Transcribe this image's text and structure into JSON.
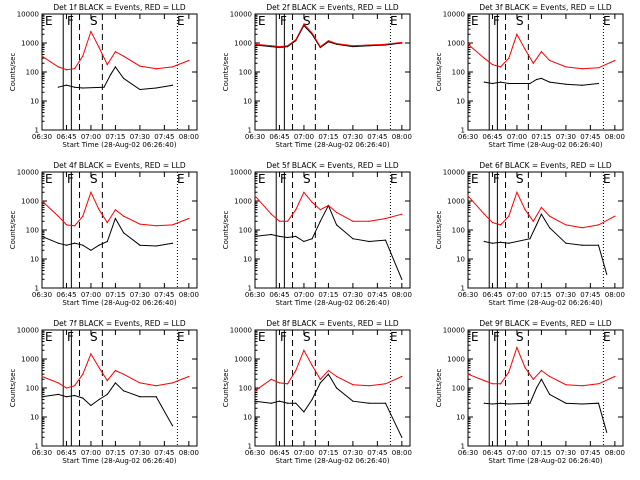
{
  "figure": {
    "xlabel": "Start Time (28-Aug-02 06:26:40)",
    "ylabel": "Counts/sec",
    "xticks": [
      "06:30",
      "06:45",
      "07:00",
      "07:15",
      "07:30",
      "07:45",
      "08:00"
    ],
    "yticks": [
      "1",
      "10",
      "100",
      "1000",
      "10000"
    ],
    "markers": [
      "E",
      "F",
      "S",
      "E"
    ],
    "colors": {
      "events": "#000000",
      "lld": "#ff0000",
      "axes": "#000000"
    }
  },
  "chart_data": [
    {
      "type": "line",
      "title": "Det 1f BLACK = Events, RED = LLD",
      "yscale": "log",
      "xlim": [
        "06:30",
        "08:05"
      ],
      "ylim": [
        1,
        10000
      ],
      "series": [
        {
          "name": "Events",
          "color": "#000000",
          "x": [
            "06:40",
            "06:45",
            "06:50",
            "06:55",
            "07:08",
            "07:12",
            "07:15",
            "07:20",
            "07:30",
            "07:40",
            "07:50"
          ],
          "y": [
            30,
            35,
            30,
            28,
            30,
            80,
            150,
            60,
            25,
            28,
            35
          ]
        },
        {
          "name": "LLD",
          "color": "#ff0000",
          "x": [
            "06:30",
            "06:40",
            "06:45",
            "06:50",
            "06:55",
            "07:00",
            "07:05",
            "07:10",
            "07:15",
            "07:20",
            "07:30",
            "07:40",
            "07:50",
            "08:00"
          ],
          "y": [
            350,
            150,
            120,
            130,
            350,
            2500,
            700,
            180,
            500,
            350,
            160,
            130,
            150,
            250
          ]
        }
      ]
    },
    {
      "type": "line",
      "title": "Det 2f BLACK = Events, RED = LLD",
      "yscale": "log",
      "xlim": [
        "06:30",
        "08:05"
      ],
      "ylim": [
        1,
        10000
      ],
      "series": [
        {
          "name": "Events",
          "color": "#000000",
          "x": [
            "06:30",
            "06:40",
            "06:45",
            "06:50",
            "06:55",
            "07:00",
            "07:05",
            "07:10",
            "07:15",
            "07:20",
            "07:30",
            "07:40",
            "07:50",
            "08:00"
          ],
          "y": [
            850,
            750,
            700,
            750,
            1200,
            4000,
            2000,
            700,
            1100,
            900,
            750,
            800,
            850,
            1000
          ]
        },
        {
          "name": "LLD",
          "color": "#ff0000",
          "x": [
            "06:30",
            "06:40",
            "06:45",
            "06:50",
            "06:55",
            "07:00",
            "07:05",
            "07:10",
            "07:15",
            "07:20",
            "07:30",
            "07:40",
            "07:50",
            "08:00"
          ],
          "y": [
            900,
            800,
            750,
            800,
            1300,
            4500,
            2200,
            750,
            1200,
            950,
            800,
            850,
            900,
            1050
          ]
        }
      ]
    },
    {
      "type": "line",
      "title": "Det 3f BLACK = Events, RED = LLD",
      "yscale": "log",
      "xlim": [
        "06:30",
        "08:05"
      ],
      "ylim": [
        1,
        10000
      ],
      "series": [
        {
          "name": "Events",
          "color": "#000000",
          "x": [
            "06:40",
            "06:45",
            "06:50",
            "06:55",
            "07:08",
            "07:12",
            "07:15",
            "07:20",
            "07:30",
            "07:40",
            "07:50"
          ],
          "y": [
            45,
            40,
            45,
            40,
            40,
            55,
            60,
            45,
            38,
            35,
            40
          ]
        },
        {
          "name": "LLD",
          "color": "#ff0000",
          "x": [
            "06:30",
            "06:40",
            "06:45",
            "06:50",
            "06:55",
            "07:00",
            "07:05",
            "07:10",
            "07:15",
            "07:20",
            "07:30",
            "07:40",
            "07:50",
            "08:00"
          ],
          "y": [
            900,
            300,
            180,
            150,
            300,
            2000,
            600,
            200,
            500,
            250,
            150,
            130,
            140,
            250
          ]
        }
      ]
    },
    {
      "type": "line",
      "title": "Det 4f BLACK = Events, RED = LLD",
      "yscale": "log",
      "xlim": [
        "06:30",
        "08:05"
      ],
      "ylim": [
        1,
        10000
      ],
      "series": [
        {
          "name": "Events",
          "color": "#000000",
          "x": [
            "06:30",
            "06:40",
            "06:45",
            "06:50",
            "06:55",
            "07:00",
            "07:05",
            "07:10",
            "07:15",
            "07:20",
            "07:30",
            "07:40",
            "07:50"
          ],
          "y": [
            60,
            35,
            30,
            35,
            30,
            20,
            30,
            40,
            250,
            80,
            30,
            28,
            35
          ]
        },
        {
          "name": "LLD",
          "color": "#ff0000",
          "x": [
            "06:30",
            "06:40",
            "06:45",
            "06:50",
            "06:55",
            "07:00",
            "07:05",
            "07:10",
            "07:15",
            "07:20",
            "07:30",
            "07:40",
            "07:50",
            "08:00"
          ],
          "y": [
            1000,
            300,
            150,
            140,
            300,
            2000,
            500,
            180,
            500,
            300,
            160,
            140,
            150,
            250
          ]
        }
      ]
    },
    {
      "type": "line",
      "title": "Det 5f BLACK = Events, RED = LLD",
      "yscale": "log",
      "xlim": [
        "06:30",
        "08:05"
      ],
      "ylim": [
        1,
        10000
      ],
      "series": [
        {
          "name": "Events",
          "color": "#000000",
          "x": [
            "06:30",
            "06:40",
            "06:45",
            "06:50",
            "06:55",
            "07:00",
            "07:05",
            "07:10",
            "07:15",
            "07:20",
            "07:30",
            "07:40",
            "07:50",
            "08:00"
          ],
          "y": [
            60,
            70,
            60,
            55,
            60,
            40,
            50,
            200,
            700,
            150,
            50,
            40,
            45,
            2
          ]
        },
        {
          "name": "LLD",
          "color": "#ff0000",
          "x": [
            "06:30",
            "06:40",
            "06:45",
            "06:50",
            "06:55",
            "07:00",
            "07:05",
            "07:10",
            "07:15",
            "07:20",
            "07:30",
            "07:40",
            "07:50",
            "08:00"
          ],
          "y": [
            1500,
            350,
            200,
            200,
            500,
            2000,
            900,
            500,
            700,
            400,
            200,
            200,
            250,
            350
          ]
        }
      ]
    },
    {
      "type": "line",
      "title": "Det 6f BLACK = Events, RED = LLD",
      "yscale": "log",
      "xlim": [
        "06:30",
        "08:05"
      ],
      "ylim": [
        1,
        10000
      ],
      "series": [
        {
          "name": "Events",
          "color": "#000000",
          "x": [
            "06:40",
            "06:45",
            "06:50",
            "06:55",
            "07:08",
            "07:12",
            "07:15",
            "07:20",
            "07:30",
            "07:40",
            "07:50",
            "07:55"
          ],
          "y": [
            40,
            35,
            38,
            35,
            50,
            150,
            350,
            120,
            35,
            30,
            30,
            3
          ]
        },
        {
          "name": "LLD",
          "color": "#ff0000",
          "x": [
            "06:30",
            "06:40",
            "06:45",
            "06:50",
            "06:55",
            "07:00",
            "07:05",
            "07:10",
            "07:15",
            "07:20",
            "07:30",
            "07:40",
            "07:50",
            "08:00"
          ],
          "y": [
            1500,
            350,
            180,
            150,
            300,
            2000,
            500,
            200,
            600,
            300,
            150,
            120,
            150,
            300
          ]
        }
      ]
    },
    {
      "type": "line",
      "title": "Det 7f BLACK = Events, RED = LLD",
      "yscale": "log",
      "xlim": [
        "06:30",
        "08:05"
      ],
      "ylim": [
        1,
        10000
      ],
      "series": [
        {
          "name": "Events",
          "color": "#000000",
          "x": [
            "06:30",
            "06:40",
            "06:45",
            "06:50",
            "06:55",
            "07:00",
            "07:05",
            "07:10",
            "07:15",
            "07:20",
            "07:30",
            "07:40",
            "07:50"
          ],
          "y": [
            50,
            60,
            50,
            55,
            45,
            25,
            40,
            60,
            150,
            80,
            50,
            50,
            5
          ]
        },
        {
          "name": "LLD",
          "color": "#ff0000",
          "x": [
            "06:30",
            "06:40",
            "06:45",
            "06:50",
            "06:55",
            "07:00",
            "07:05",
            "07:10",
            "07:15",
            "07:20",
            "07:30",
            "07:40",
            "07:50",
            "08:00"
          ],
          "y": [
            250,
            150,
            100,
            120,
            300,
            1500,
            500,
            180,
            400,
            300,
            150,
            120,
            150,
            250
          ]
        }
      ]
    },
    {
      "type": "line",
      "title": "Det 8f BLACK = Events, RED = LLD",
      "yscale": "log",
      "xlim": [
        "06:30",
        "08:05"
      ],
      "ylim": [
        1,
        10000
      ],
      "series": [
        {
          "name": "Events",
          "color": "#000000",
          "x": [
            "06:30",
            "06:40",
            "06:45",
            "06:50",
            "06:55",
            "07:00",
            "07:05",
            "07:10",
            "07:15",
            "07:20",
            "07:30",
            "07:40",
            "07:50",
            "08:00"
          ],
          "y": [
            35,
            30,
            35,
            30,
            30,
            15,
            40,
            150,
            300,
            100,
            35,
            30,
            30,
            2
          ]
        },
        {
          "name": "LLD",
          "color": "#ff0000",
          "x": [
            "06:30",
            "06:40",
            "06:45",
            "06:50",
            "06:55",
            "07:00",
            "07:05",
            "07:10",
            "07:15",
            "07:20",
            "07:30",
            "07:40",
            "07:50",
            "08:00"
          ],
          "y": [
            80,
            200,
            150,
            140,
            400,
            2000,
            600,
            200,
            400,
            250,
            130,
            120,
            140,
            250
          ]
        }
      ]
    },
    {
      "type": "line",
      "title": "Det 9f BLACK = Events, RED = LLD",
      "yscale": "log",
      "xlim": [
        "06:30",
        "08:05"
      ],
      "ylim": [
        1,
        10000
      ],
      "series": [
        {
          "name": "Events",
          "color": "#000000",
          "x": [
            "06:40",
            "06:45",
            "06:50",
            "06:55",
            "07:08",
            "07:12",
            "07:15",
            "07:20",
            "07:30",
            "07:40",
            "07:50",
            "07:55"
          ],
          "y": [
            30,
            28,
            30,
            28,
            30,
            100,
            200,
            60,
            30,
            28,
            30,
            3
          ]
        },
        {
          "name": "LLD",
          "color": "#ff0000",
          "x": [
            "06:30",
            "06:40",
            "06:45",
            "06:50",
            "06:55",
            "07:00",
            "07:05",
            "07:10",
            "07:15",
            "07:20",
            "07:30",
            "07:40",
            "07:50",
            "08:00"
          ],
          "y": [
            300,
            180,
            140,
            140,
            350,
            2500,
            500,
            200,
            400,
            250,
            130,
            120,
            140,
            250
          ]
        }
      ]
    }
  ]
}
